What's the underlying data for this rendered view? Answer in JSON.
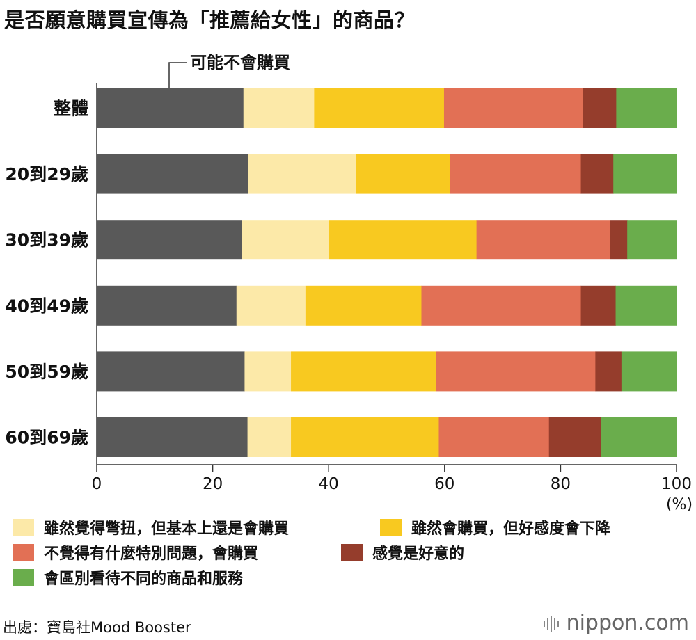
{
  "title": "是否願意購買宣傳為「推薦給女性」的商品？",
  "source": "出處：寶島社Mood Booster",
  "logo": "nippon.com",
  "chart_data": {
    "type": "bar",
    "orientation": "horizontal",
    "stacked": true,
    "categories": [
      "整體",
      "20到29歲",
      "30到39歲",
      "40到49歲",
      "50到59歲",
      "60到69歲"
    ],
    "series": [
      {
        "name": "可能不會購買",
        "color": "#595959",
        "values": [
          25.3,
          26.1,
          25.0,
          24.1,
          25.5,
          26.0
        ]
      },
      {
        "name": "雖然覺得彆扭，但基本上還是會購買",
        "color": "#fce9a8",
        "values": [
          12.2,
          18.6,
          15.0,
          11.9,
          8.0,
          7.5
        ]
      },
      {
        "name": "雖然會購買，但好感度會下降",
        "color": "#f8c920",
        "values": [
          22.4,
          16.2,
          25.5,
          20.0,
          25.0,
          25.5
        ]
      },
      {
        "name": "不覺得有什麼特別問題，會購買",
        "color": "#e27055",
        "values": [
          24.0,
          22.6,
          23.0,
          27.5,
          27.5,
          19.0
        ]
      },
      {
        "name": "感覺是好意的",
        "color": "#953d2c",
        "values": [
          5.7,
          5.6,
          3.0,
          6.0,
          4.5,
          9.0
        ]
      },
      {
        "name": "會區別看待不同的商品和服務",
        "color": "#6aad4c",
        "values": [
          10.4,
          10.9,
          8.5,
          10.5,
          9.5,
          13.0
        ]
      }
    ],
    "annotation": "可能不會購買",
    "xlim": [
      0,
      100
    ],
    "xticks": [
      0,
      20,
      40,
      60,
      80,
      100
    ],
    "xunit": "(%)"
  }
}
